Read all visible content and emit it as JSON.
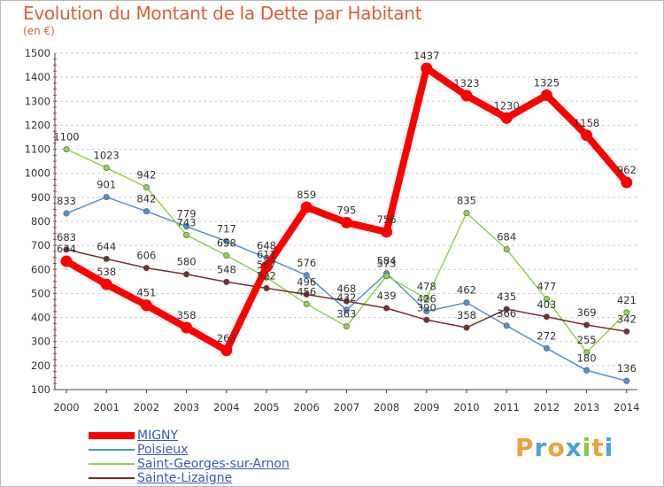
{
  "chart_data": {
    "type": "line",
    "title": "Evolution du Montant de la Dette par Habitant",
    "subtitle": "(en €)",
    "x": [
      "2000",
      "2001",
      "2002",
      "2003",
      "2004",
      "2005",
      "2006",
      "2007",
      "2008",
      "2009",
      "2010",
      "2011",
      "2012",
      "2013",
      "2014"
    ],
    "ylim": [
      100,
      1500
    ],
    "yticks": [
      100,
      200,
      300,
      400,
      500,
      600,
      700,
      800,
      900,
      1000,
      1100,
      1200,
      1300,
      1400,
      1500
    ],
    "grid": "horizontal",
    "legend_position": "bottom-left",
    "series": [
      {
        "name": "MIGNY",
        "color": "#ff0000",
        "values": [
          634,
          538,
          451,
          358,
          263,
          611,
          859,
          795,
          756,
          1437,
          1323,
          1230,
          1325,
          1158,
          962
        ],
        "labels": [
          "634",
          "538",
          "451",
          "358",
          "263",
          "611",
          "859",
          "795",
          "756",
          "1437",
          "1323",
          "1230",
          "1325",
          "1158",
          "962"
        ]
      },
      {
        "name": "Poisieux",
        "color": "#4f93d4",
        "values": [
          833,
          901,
          842,
          779,
          717,
          648,
          576,
          432,
          584,
          426,
          462,
          366,
          272,
          180,
          136
        ],
        "labels": [
          "833",
          "901",
          "842",
          "779",
          "717",
          "648",
          "576",
          "432",
          "584",
          "426",
          "462",
          "366",
          "272",
          "180",
          "136"
        ]
      },
      {
        "name": "Saint-Georges-sur-Arnon",
        "color": "#8fd44b",
        "values": [
          1100,
          1023,
          942,
          743,
          658,
          567,
          456,
          363,
          573,
          478,
          835,
          684,
          477,
          255,
          421
        ],
        "labels": [
          "1100",
          "1023",
          "942",
          "743",
          "658",
          "567",
          "456",
          "363",
          "573",
          "478",
          "835",
          "684",
          "477",
          "255",
          "421"
        ]
      },
      {
        "name": "Sainte-Lizaigne",
        "color": "#7a2b2b",
        "values": [
          683,
          644,
          606,
          580,
          548,
          522,
          496,
          468,
          439,
          390,
          358,
          435,
          403,
          369,
          342
        ],
        "labels": [
          "683",
          "644",
          "606",
          "580",
          "548",
          "522",
          "496",
          "468",
          "439",
          "390",
          "358",
          "435",
          "403",
          "369",
          "342"
        ]
      }
    ]
  },
  "logo": {
    "letters": [
      "P",
      "r",
      "o",
      "x",
      "i",
      "t",
      "i"
    ],
    "colors": [
      "#e8a33a",
      "#4ba3d9",
      "#e8a33a",
      "#4ba3d9",
      "#8cc63f",
      "#e8a33a",
      "#4ba3d9"
    ]
  }
}
